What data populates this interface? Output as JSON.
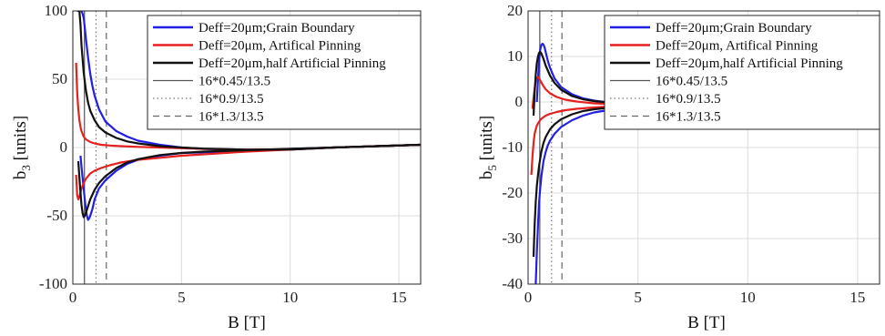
{
  "chart_data": [
    {
      "type": "line",
      "xlabel": "B [T]",
      "ylabel": {
        "main": "b",
        "sub": "3",
        "unit": " [units]"
      },
      "xlim": [
        0,
        16
      ],
      "ylim": [
        -100,
        100
      ],
      "xticks": [
        0,
        5,
        10,
        15
      ],
      "yticks": [
        -100,
        -50,
        0,
        50,
        100
      ],
      "grid": true,
      "legend_position": "top-right",
      "series": [
        {
          "name": "Deff=20μm;Grain Boundary",
          "color": "#1f1fe6",
          "style": "solid",
          "x": [
            0.3,
            0.35,
            0.4,
            0.45,
            0.5,
            0.55,
            0.6,
            0.7,
            0.8,
            0.9,
            1.0,
            1.2,
            1.5,
            2.0,
            2.5,
            3.0,
            4.0,
            5.0,
            6.0,
            8.0,
            10.0,
            12.0,
            14.0,
            16.0
          ],
          "y": [
            100,
            100,
            100,
            98,
            95,
            88,
            80,
            66,
            54,
            45,
            38,
            28,
            19,
            12,
            8,
            5,
            2,
            0,
            -1,
            -1.8,
            -1.5,
            0,
            1,
            2
          ]
        },
        {
          "name": "Deff=20μm;Grain Boundary",
          "color": "#1f1fe6",
          "style": "solid",
          "x": [
            0.35,
            0.4,
            0.45,
            0.5,
            0.55,
            0.6,
            0.65,
            0.7,
            0.75,
            0.8,
            0.9,
            1.0,
            1.2,
            1.5,
            2.0,
            2.5,
            3.0,
            4.0,
            5.0,
            6.0,
            8.0,
            10.0,
            12.0,
            14.0,
            16.0
          ],
          "y": [
            -6,
            -14,
            -22,
            -30,
            -38,
            -45,
            -50,
            -53,
            -52,
            -50,
            -45,
            -38,
            -30,
            -24,
            -17,
            -12,
            -9,
            -6,
            -4,
            -3.5,
            -2.5,
            -1,
            0,
            1,
            2
          ]
        },
        {
          "name": "Deff=20μm, Artifical Pinning",
          "color": "#e61f1f",
          "style": "solid",
          "x": [
            0.15,
            0.2,
            0.25,
            0.3,
            0.35,
            0.4,
            0.5,
            0.6,
            0.8,
            1.0,
            1.3,
            1.7,
            2.2,
            3.0,
            4.0,
            5.0,
            6.0,
            8.0,
            10.0,
            12.0,
            14.0,
            16.0
          ],
          "y": [
            62,
            40,
            28,
            20,
            15,
            12,
            8,
            6,
            4,
            3,
            2,
            1.5,
            1,
            0.5,
            0,
            -0.5,
            -1,
            -1.5,
            -1.2,
            0,
            1,
            2
          ]
        },
        {
          "name": "Deff=20μm, Artifical Pinning",
          "color": "#e61f1f",
          "style": "solid",
          "x": [
            0.15,
            0.2,
            0.25,
            0.3,
            0.35,
            0.4,
            0.5,
            0.6,
            0.8,
            1.0,
            1.3,
            1.7,
            2.2,
            3.0,
            4.0,
            5.0,
            6.0,
            8.0,
            10.0,
            12.0,
            14.0,
            16.0
          ],
          "y": [
            -20,
            -35,
            -38,
            -36,
            -33,
            -30,
            -26,
            -23,
            -19,
            -17,
            -15,
            -13,
            -11,
            -9,
            -7.5,
            -6,
            -5,
            -3,
            -1.5,
            0,
            1,
            2
          ]
        },
        {
          "name": "Deff=20μm,half Artificial Pinning",
          "color": "#111111",
          "style": "solid",
          "x": [
            0.2,
            0.25,
            0.3,
            0.35,
            0.4,
            0.5,
            0.6,
            0.7,
            0.8,
            1.0,
            1.2,
            1.5,
            2.0,
            2.5,
            3.0,
            4.0,
            5.0,
            6.0,
            8.0,
            10.0,
            12.0,
            14.0,
            16.0
          ],
          "y": [
            100,
            100,
            100,
            90,
            75,
            55,
            42,
            33,
            27,
            20,
            15,
            11,
            7,
            4.5,
            3,
            1,
            0,
            -0.8,
            -1.6,
            -1.4,
            0,
            1,
            2
          ]
        },
        {
          "name": "Deff=20μm,half Artificial Pinning",
          "color": "#111111",
          "style": "solid",
          "x": [
            0.25,
            0.3,
            0.35,
            0.4,
            0.45,
            0.5,
            0.55,
            0.6,
            0.7,
            0.8,
            1.0,
            1.2,
            1.5,
            2.0,
            2.5,
            3.0,
            4.0,
            5.0,
            6.0,
            8.0,
            10.0,
            12.0,
            14.0,
            16.0
          ],
          "y": [
            -10,
            -22,
            -33,
            -42,
            -48,
            -51,
            -50,
            -48,
            -43,
            -38,
            -31,
            -26,
            -21,
            -15,
            -11,
            -8.5,
            -5.5,
            -4,
            -3,
            -2,
            -1,
            0,
            1,
            2
          ]
        },
        {
          "name": "16*0.45/13.5",
          "color": "#555555",
          "style": "vline-solid",
          "x_value": 0.533
        },
        {
          "name": "16*0.9/13.5",
          "color": "#777777",
          "style": "vline-dotted",
          "x_value": 1.067
        },
        {
          "name": "16*1.3/13.5",
          "color": "#666666",
          "style": "vline-dashed",
          "x_value": 1.541
        }
      ]
    },
    {
      "type": "line",
      "xlabel": "B [T]",
      "ylabel": {
        "main": "b",
        "sub": "5",
        "unit": " [units]"
      },
      "xlim": [
        0,
        16
      ],
      "ylim": [
        -40,
        20
      ],
      "xticks": [
        0,
        5,
        10,
        15
      ],
      "yticks": [
        -40,
        -30,
        -20,
        -10,
        0,
        10,
        20
      ],
      "grid": true,
      "legend_position": "top-right",
      "series": [
        {
          "name": "Deff=20μm;Grain Boundary",
          "color": "#1f1fe6",
          "style": "solid",
          "x": [
            0.4,
            0.45,
            0.5,
            0.55,
            0.6,
            0.65,
            0.7,
            0.75,
            0.8,
            0.9,
            1.0,
            1.2,
            1.5,
            2.0,
            2.5,
            3.0,
            4.0,
            5.0,
            6.0,
            8.0,
            10.0,
            12.0,
            14.0,
            16.0
          ],
          "y": [
            0,
            5,
            9,
            11.5,
            12.5,
            12.8,
            12.6,
            12,
            11,
            9,
            7.5,
            5.2,
            3.3,
            1.7,
            0.8,
            0.3,
            -0.3,
            -0.5,
            -0.6,
            -0.6,
            -0.5,
            -0.4,
            -0.3,
            -0.2
          ]
        },
        {
          "name": "Deff=20μm;Grain Boundary",
          "color": "#1f1fe6",
          "style": "solid",
          "x": [
            0.35,
            0.4,
            0.45,
            0.5,
            0.55,
            0.6,
            0.7,
            0.8,
            0.9,
            1.0,
            1.2,
            1.5,
            2.0,
            2.5,
            3.0,
            4.0,
            5.0,
            6.0,
            8.0,
            10.0,
            12.0,
            14.0,
            16.0
          ],
          "y": [
            -40,
            -33,
            -27,
            -22,
            -19,
            -16.5,
            -13,
            -11,
            -9.5,
            -8.5,
            -7,
            -5.5,
            -4,
            -3,
            -2.3,
            -1.5,
            -1.1,
            -0.9,
            -0.7,
            -0.5,
            -0.4,
            -0.3,
            -0.2
          ]
        },
        {
          "name": "Deff=20μm, Artifical Pinning",
          "color": "#e61f1f",
          "style": "solid",
          "x": [
            0.2,
            0.25,
            0.3,
            0.35,
            0.4,
            0.45,
            0.5,
            0.6,
            0.7,
            0.8,
            1.0,
            1.3,
            1.7,
            2.2,
            3.0,
            4.0,
            5.0,
            6.0,
            8.0,
            10.0,
            12.0,
            14.0,
            16.0
          ],
          "y": [
            -1.5,
            1,
            3,
            4.5,
            5.3,
            5.5,
            5.2,
            4.3,
            3.5,
            2.8,
            1.9,
            1.1,
            0.5,
            0.1,
            -0.3,
            -0.5,
            -0.6,
            -0.6,
            -0.5,
            -0.4,
            -0.35,
            -0.3,
            -0.2
          ]
        },
        {
          "name": "Deff=20μm, Artifical Pinning",
          "color": "#e61f1f",
          "style": "solid",
          "x": [
            0.15,
            0.2,
            0.25,
            0.3,
            0.35,
            0.4,
            0.5,
            0.6,
            0.8,
            1.0,
            1.3,
            1.7,
            2.2,
            3.0,
            4.0,
            5.0,
            6.0,
            8.0,
            10.0,
            12.0,
            14.0,
            16.0
          ],
          "y": [
            -16,
            -12,
            -9,
            -7,
            -6,
            -5.2,
            -4.3,
            -3.7,
            -3,
            -2.6,
            -2.2,
            -1.8,
            -1.5,
            -1.2,
            -0.9,
            -0.8,
            -0.7,
            -0.6,
            -0.5,
            -0.4,
            -0.3,
            -0.2
          ]
        },
        {
          "name": "Deff=20μm,half Artificial Pinning",
          "color": "#111111",
          "style": "solid",
          "x": [
            0.25,
            0.3,
            0.35,
            0.4,
            0.45,
            0.5,
            0.55,
            0.6,
            0.7,
            0.8,
            1.0,
            1.2,
            1.5,
            2.0,
            2.5,
            3.0,
            4.0,
            5.0,
            6.0,
            8.0,
            10.0,
            12.0,
            14.0,
            16.0
          ],
          "y": [
            -3,
            2,
            6,
            8.5,
            10,
            10.8,
            11,
            10.7,
            9.5,
            8,
            5.8,
            4.2,
            2.7,
            1.3,
            0.6,
            0.2,
            -0.3,
            -0.5,
            -0.6,
            -0.6,
            -0.5,
            -0.4,
            -0.3,
            -0.2
          ]
        },
        {
          "name": "Deff=20μm,half Artificial Pinning",
          "color": "#111111",
          "style": "solid",
          "x": [
            0.25,
            0.3,
            0.35,
            0.4,
            0.45,
            0.5,
            0.6,
            0.7,
            0.8,
            1.0,
            1.2,
            1.5,
            2.0,
            2.5,
            3.0,
            4.0,
            5.0,
            6.0,
            8.0,
            10.0,
            12.0,
            14.0,
            16.0
          ],
          "y": [
            -34,
            -27,
            -22,
            -18.5,
            -16,
            -14,
            -11,
            -9,
            -7.7,
            -6,
            -4.9,
            -3.8,
            -2.7,
            -2,
            -1.6,
            -1.1,
            -0.9,
            -0.8,
            -0.6,
            -0.5,
            -0.4,
            -0.3,
            -0.2
          ]
        },
        {
          "name": "16*0.45/13.5",
          "color": "#555555",
          "style": "vline-solid",
          "x_value": 0.533
        },
        {
          "name": "16*0.9/13.5",
          "color": "#777777",
          "style": "vline-dotted",
          "x_value": 1.067
        },
        {
          "name": "16*1.3/13.5",
          "color": "#666666",
          "style": "vline-dashed",
          "x_value": 1.541
        }
      ]
    }
  ],
  "legend": {
    "entries": [
      {
        "label": "Deff=20μm;Grain Boundary",
        "color": "#1f1fe6",
        "style": "solid",
        "weight": 2.6
      },
      {
        "label": "Deff=20μm, Artifical Pinning",
        "color": "#e61f1f",
        "style": "solid",
        "weight": 2.6
      },
      {
        "label": "Deff=20μm,half Artificial Pinning",
        "color": "#111111",
        "style": "solid",
        "weight": 2.6
      },
      {
        "label": "16*0.45/13.5",
        "color": "#555555",
        "style": "solid",
        "weight": 1.2
      },
      {
        "label": "16*0.9/13.5",
        "color": "#777777",
        "style": "dotted",
        "weight": 1.2
      },
      {
        "label": "16*1.3/13.5",
        "color": "#666666",
        "style": "dashed",
        "weight": 1.2
      }
    ]
  }
}
